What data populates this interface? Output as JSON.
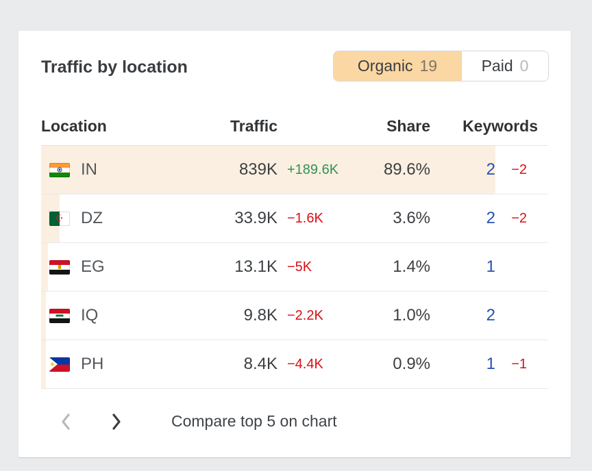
{
  "panel": {
    "title": "Traffic by location",
    "tabs": [
      {
        "label": "Organic",
        "count": "19",
        "active": true
      },
      {
        "label": "Paid",
        "count": "0",
        "active": false
      }
    ],
    "table": {
      "headers": [
        "Location",
        "Traffic",
        "Share",
        "Keywords"
      ],
      "rows": [
        {
          "code": "IN",
          "flag": "india-flag",
          "traffic": "839K",
          "traffic_delta": "+189.6K",
          "traffic_delta_direction": "up",
          "share": "89.6%",
          "share_pct": 89.6,
          "keywords": "2",
          "keywords_delta": "−2"
        },
        {
          "code": "DZ",
          "flag": "algeria-flag",
          "traffic": "33.9K",
          "traffic_delta": "−1.6K",
          "traffic_delta_direction": "down",
          "share": "3.6%",
          "share_pct": 3.6,
          "keywords": "2",
          "keywords_delta": "−2"
        },
        {
          "code": "EG",
          "flag": "egypt-flag",
          "traffic": "13.1K",
          "traffic_delta": "−5K",
          "traffic_delta_direction": "down",
          "share": "1.4%",
          "share_pct": 1.4,
          "keywords": "1",
          "keywords_delta": ""
        },
        {
          "code": "IQ",
          "flag": "iraq-flag",
          "traffic": "9.8K",
          "traffic_delta": "−2.2K",
          "traffic_delta_direction": "down",
          "share": "1.0%",
          "share_pct": 1.0,
          "keywords": "2",
          "keywords_delta": ""
        },
        {
          "code": "PH",
          "flag": "philippines-flag",
          "traffic": "8.4K",
          "traffic_delta": "−4.4K",
          "traffic_delta_direction": "down",
          "share": "0.9%",
          "share_pct": 0.9,
          "keywords": "1",
          "keywords_delta": "−1"
        }
      ]
    },
    "footer": {
      "compare_label": "Compare top 5 on chart"
    },
    "colors": {
      "tab_active_bg": "#fbd7a3",
      "share_bar_bg": "#fbefe1",
      "positive": "#319256",
      "negative": "#d90f16",
      "keywords_blue": "#2551b4",
      "page_bg": "#eaebed"
    }
  }
}
